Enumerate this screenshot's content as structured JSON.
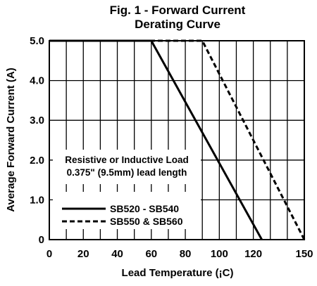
{
  "chart_data": {
    "type": "line",
    "title": "Fig. 1 - Forward Current",
    "subtitle": "Derating Curve",
    "xlabel": "Lead Temperature (¡C)",
    "ylabel": "Average Forward Current (A)",
    "xlim": [
      0,
      150
    ],
    "ylim": [
      0,
      5
    ],
    "xticks": [
      0,
      20,
      40,
      60,
      80,
      100,
      120,
      150
    ],
    "xtick_labels": [
      "0",
      "20",
      "40",
      "60",
      "80",
      "100",
      "120",
      "150"
    ],
    "yticks": [
      0,
      1,
      2,
      3,
      4,
      5
    ],
    "ytick_labels": [
      "0",
      "1.0",
      "2.0",
      "3.0",
      "4.0",
      "5.0"
    ],
    "grid": true,
    "grid_x_step": 10,
    "annotation": [
      "Resistive or Inductive Load",
      "0.375\" (9.5mm) lead length"
    ],
    "series": [
      {
        "name": "SB520 - SB540",
        "style": "solid",
        "color": "#000000",
        "x": [
          0,
          60,
          125
        ],
        "y": [
          5.0,
          5.0,
          0.0
        ]
      },
      {
        "name": "SB550 & SB560",
        "style": "dashed",
        "color": "#000000",
        "x": [
          0,
          90,
          150
        ],
        "y": [
          5.0,
          5.0,
          0.0
        ]
      }
    ],
    "legend_position": "bottom-left"
  }
}
